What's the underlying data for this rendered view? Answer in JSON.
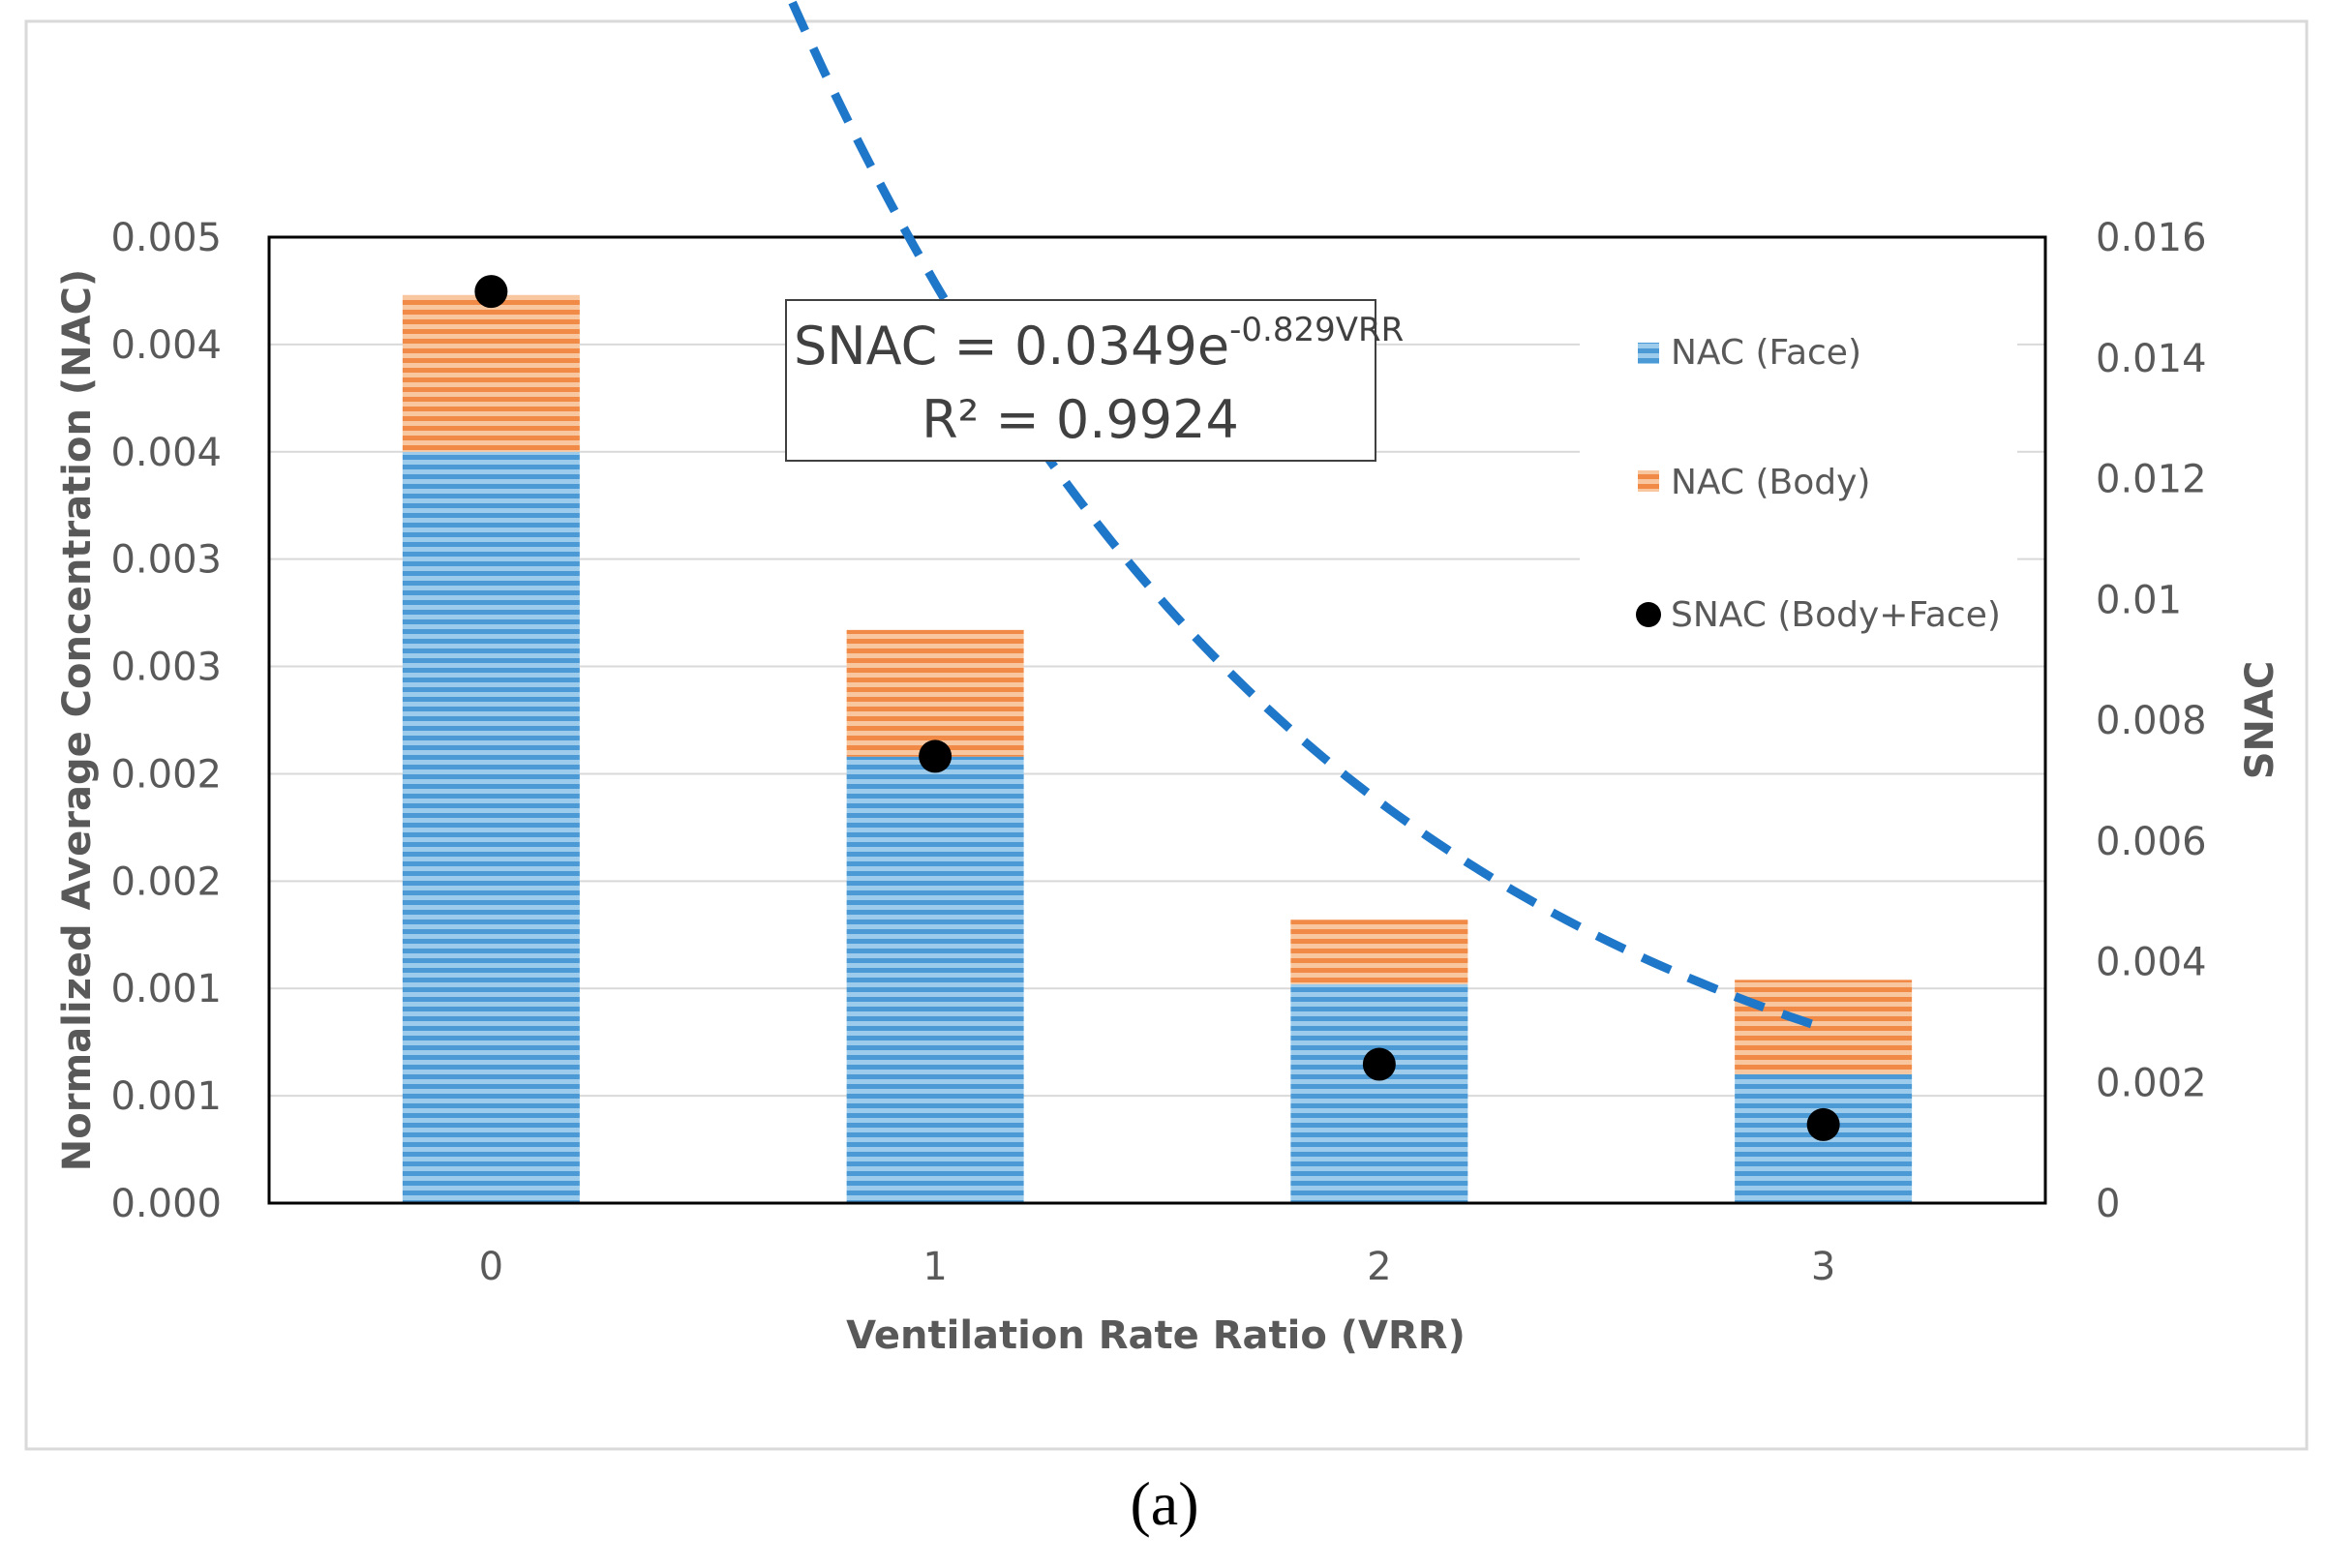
{
  "chart_data": {
    "type": "bar",
    "stacked": true,
    "categories": [
      "0",
      "1",
      "2",
      "3"
    ],
    "series": [
      {
        "name": "NAC (Face)",
        "axis": "left",
        "kind": "bar",
        "color": "#5BA3D9",
        "values": [
          0.0035,
          0.00208,
          0.00102,
          0.0006
        ]
      },
      {
        "name": "NAC (Body)",
        "axis": "left",
        "kind": "bar",
        "color": "#F4A46A",
        "values": [
          0.00073,
          0.00059,
          0.0003,
          0.00044
        ]
      },
      {
        "name": "SNAC (Body+Face)",
        "axis": "right",
        "kind": "scatter",
        "color": "#000000",
        "values": [
          0.0151,
          0.0074,
          0.0023,
          0.0013
        ]
      }
    ],
    "trendline": {
      "type": "exponential",
      "a": 0.0349,
      "b": -0.829,
      "color": "#1F77C9",
      "axis": "right",
      "x_range": [
        0,
        3
      ]
    },
    "title": "",
    "xlabel": "Ventilation Rate Ratio (VRR)",
    "ylabel": "Normalized Average Concentration (NAC)",
    "y2label": "SNAC",
    "ylim": [
      0,
      0.0045
    ],
    "y2lim": [
      0,
      0.016
    ],
    "yticks": [
      "0.000",
      "0.001",
      "0.001",
      "0.002",
      "0.002",
      "0.003",
      "0.003",
      "0.004",
      "0.004",
      "0.005"
    ],
    "y2ticks": [
      "0",
      "0.002",
      "0.004",
      "0.006",
      "0.008",
      "0.01",
      "0.012",
      "0.014",
      "0.016"
    ],
    "equation": {
      "line1_prefix": "SNAC = 0.0349e",
      "line1_exponent": "-0.829VRR",
      "line2": "R² = 0.9924"
    },
    "legend_position": "right",
    "caption": "(a)"
  }
}
